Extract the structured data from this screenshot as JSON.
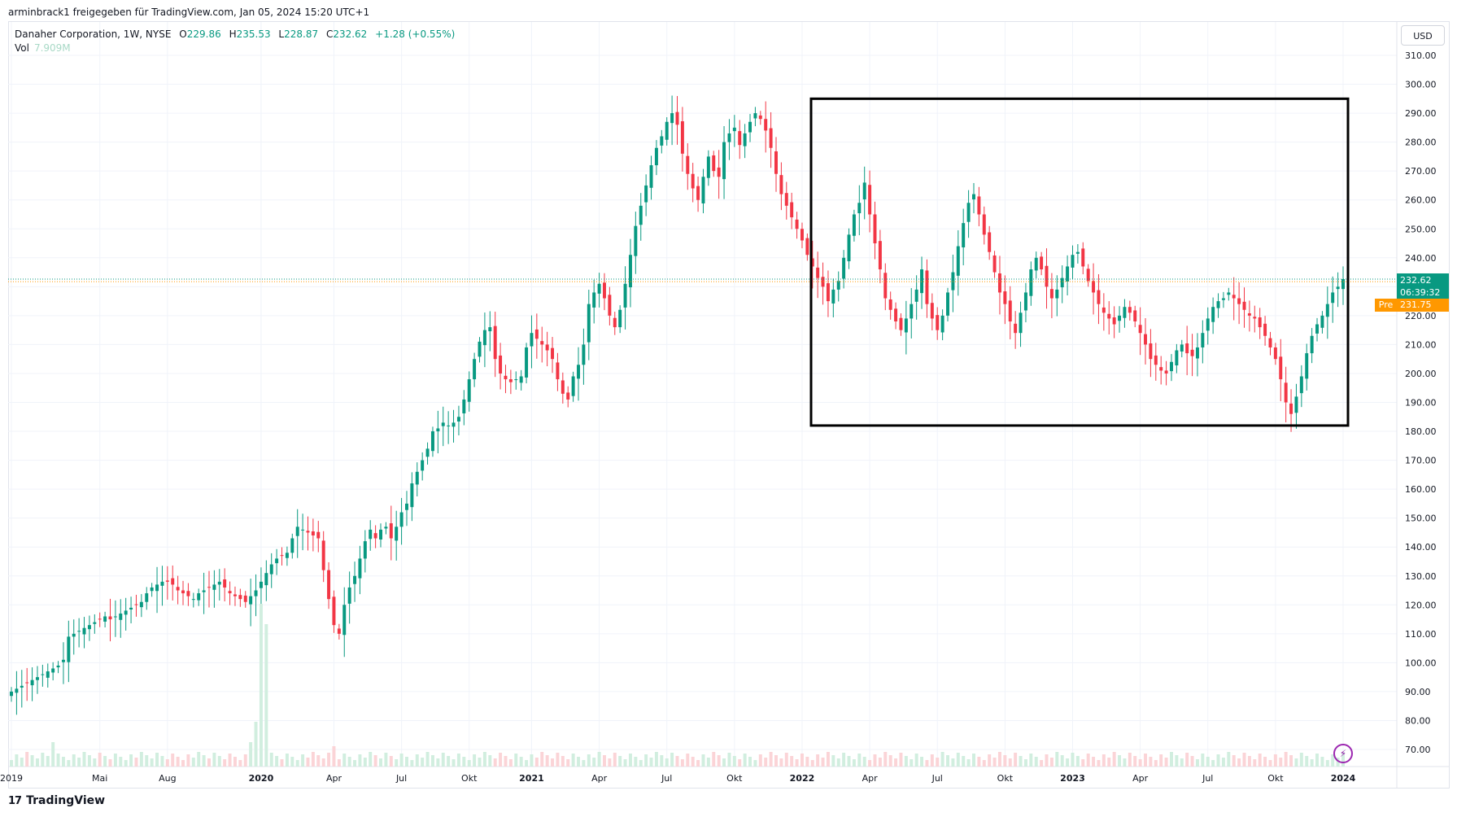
{
  "caption": "arminbrack1 freigegeben für TradingView.com, Jan 05, 2024 15:20 UTC+1",
  "legend": {
    "symbol": "Danaher Corporation, 1W, NYSE",
    "open_label": "O",
    "open": "229.86",
    "high_label": "H",
    "high": "235.53",
    "low_label": "L",
    "low": "228.87",
    "close_label": "C",
    "close": "232.62",
    "change": "+1.28 (+0.55%)",
    "vol_label": "Vol",
    "vol": "7.909M"
  },
  "currency_button": "USD",
  "last_price_tag": {
    "price": "232.62",
    "countdown": "06:39:32"
  },
  "pre_market_tag": {
    "label": "Pre",
    "price": "231.75"
  },
  "footer": {
    "logo": "17",
    "brand": "TradingView"
  },
  "colors": {
    "up": "#089981",
    "down": "#f23645",
    "volume_up": "#d1eedf",
    "volume_down": "#fbd4d7",
    "grid": "#f0f3fa",
    "box": "#000000",
    "pre": "#ff9800"
  },
  "chart_data": {
    "type": "candlestick",
    "interval": "1W",
    "y_axis": {
      "scale": "linear",
      "ylim": [
        64,
        314
      ],
      "ticks": [
        "310.00",
        "300.00",
        "290.00",
        "280.00",
        "270.00",
        "260.00",
        "250.00",
        "240.00",
        "230.00",
        "220.00",
        "210.00",
        "200.00",
        "190.00",
        "180.00",
        "170.00",
        "160.00",
        "150.00",
        "140.00",
        "130.00",
        "120.00",
        "110.00",
        "100.00",
        "90.00",
        "80.00",
        "70.00"
      ],
      "tick_values": [
        310,
        300,
        290,
        280,
        270,
        260,
        250,
        240,
        230,
        220,
        210,
        200,
        190,
        180,
        170,
        160,
        150,
        140,
        130,
        120,
        110,
        100,
        90,
        80,
        70
      ]
    },
    "x_axis": {
      "labels": [
        "2019",
        "Mai",
        "Aug",
        "2020",
        "Apr",
        "Jul",
        "Okt",
        "2021",
        "Apr",
        "Jul",
        "Okt",
        "2022",
        "Apr",
        "Jul",
        "Okt",
        "2023",
        "Apr",
        "Jul",
        "Okt",
        "2024"
      ],
      "label_weeks": [
        0,
        17,
        30,
        48,
        62,
        75,
        88,
        100,
        113,
        126,
        139,
        152,
        165,
        178,
        191,
        204,
        217,
        230,
        243,
        256
      ],
      "bold": [
        "2020",
        "2021",
        "2022",
        "2023",
        "2024"
      ]
    },
    "grid": true,
    "last_price": 232.62,
    "pre_market_price": 231.75,
    "closes": [
      90,
      91,
      92,
      93,
      94,
      95,
      96,
      97,
      98,
      99,
      101,
      109,
      110,
      111,
      112,
      113,
      114,
      115,
      116,
      115,
      116,
      117,
      118,
      119,
      120,
      121,
      124,
      126,
      127,
      128,
      128,
      127,
      125,
      124,
      123,
      122,
      124,
      125,
      126,
      127,
      128,
      126,
      124,
      123,
      122,
      121,
      123,
      125,
      128,
      131,
      134,
      136,
      137,
      138,
      143,
      147,
      146,
      145,
      144,
      143,
      132,
      122,
      113,
      110,
      120,
      126,
      130,
      136,
      142,
      146,
      143,
      146,
      147,
      143,
      147,
      152,
      155,
      162,
      166,
      170,
      174,
      180,
      181,
      183,
      182,
      183,
      185,
      191,
      198,
      205,
      211,
      215,
      216,
      205,
      200,
      198,
      197,
      198,
      199,
      209,
      214,
      212,
      210,
      208,
      205,
      198,
      193,
      191,
      199,
      203,
      210,
      224,
      228,
      231,
      226,
      220,
      216,
      222,
      231,
      241,
      251,
      258,
      265,
      272,
      278,
      282,
      287,
      290,
      286,
      276,
      269,
      264,
      260,
      268,
      275,
      270,
      268,
      280,
      283,
      285,
      279,
      283,
      287,
      290,
      288,
      284,
      278,
      269,
      262,
      258,
      254,
      250,
      246,
      241,
      237,
      233,
      230,
      225,
      229,
      232,
      240,
      248,
      255,
      259,
      266,
      255,
      245,
      236,
      226,
      222,
      218,
      215,
      219,
      224,
      229,
      236,
      224,
      219,
      215,
      220,
      228,
      235,
      244,
      252,
      259,
      262,
      255,
      248,
      242,
      235,
      228,
      224,
      218,
      214,
      221,
      228,
      236,
      240,
      236,
      230,
      226,
      229,
      233,
      237,
      241,
      242,
      237,
      232,
      228,
      224,
      221,
      219,
      217,
      220,
      223,
      221,
      218,
      214,
      210,
      205,
      203,
      201,
      200,
      204,
      208,
      210,
      207,
      206,
      209,
      214,
      219,
      223,
      225,
      226,
      228,
      226,
      224,
      222,
      220,
      219,
      216,
      213,
      209,
      205,
      198,
      190,
      186,
      192,
      199,
      207,
      213,
      217,
      220,
      224,
      228,
      230,
      232.62
    ],
    "notes": "Weekly candles from Jan 2019 to Jan 2024; black rectangle highlights consolidation range ~182 to ~295 from Jan 2022 onward."
  }
}
